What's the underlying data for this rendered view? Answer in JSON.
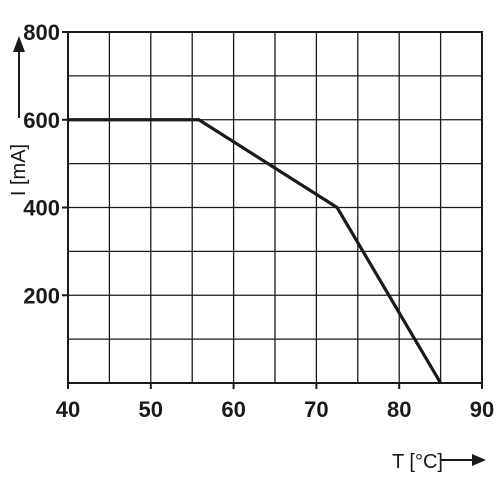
{
  "chart_data": {
    "type": "line",
    "xlabel": "T [°C]",
    "ylabel": "I [mA]",
    "xlim": [
      40,
      90
    ],
    "ylim": [
      0,
      800
    ],
    "x_ticks": [
      40,
      50,
      60,
      70,
      80,
      90
    ],
    "x_tick_labels": [
      "40",
      "50",
      "60",
      "70",
      "80",
      "90"
    ],
    "y_ticks": [
      200,
      400,
      600,
      800
    ],
    "y_tick_labels": [
      "200",
      "400",
      "600",
      "800"
    ],
    "x_grid_step": 5,
    "y_grid_step": 100,
    "grid": true,
    "legend": "none",
    "series": [
      {
        "x": [
          40,
          55.8,
          72.5,
          85
        ],
        "y": [
          600,
          600,
          400,
          0
        ]
      }
    ],
    "colors": {
      "line": "#1a1a1a",
      "grid": "#1a1a1a",
      "background": "#ffffff"
    }
  }
}
